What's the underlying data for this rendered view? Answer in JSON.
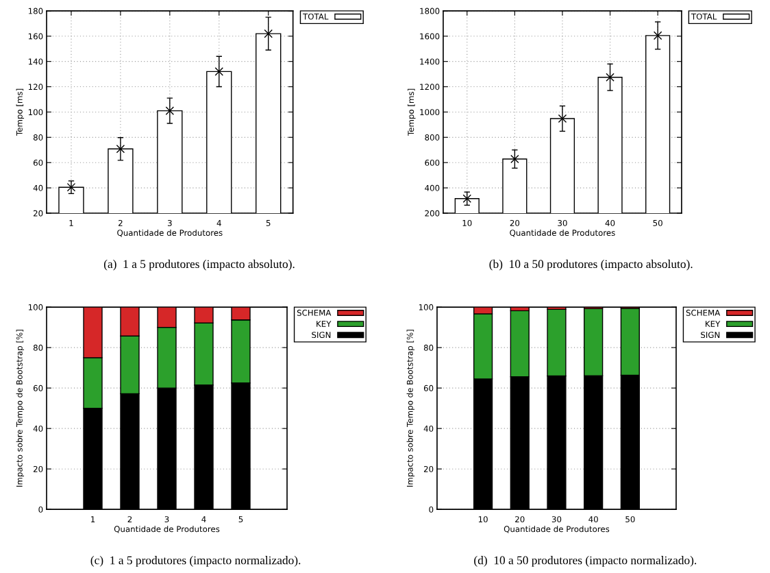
{
  "chart_data": [
    {
      "type": "bar",
      "categories": [
        "1",
        "2",
        "3",
        "4",
        "5"
      ],
      "xlabel": "Quantidade de Produtores",
      "ylabel": "Tempo [ms]",
      "ylim": [
        20,
        180
      ],
      "yticks": [
        20,
        40,
        60,
        80,
        100,
        120,
        140,
        160,
        180
      ],
      "grid": true,
      "legend": "top right",
      "marker": "cross",
      "series": [
        {
          "name": "TOTAL",
          "color": "#ffffff",
          "values": [
            40.5,
            70.8,
            101,
            132,
            162
          ]
        },
        {
          "type": "scatter",
          "color": "#000000",
          "x": [
            "1",
            "2",
            "3",
            "4",
            "5"
          ],
          "values": [
            40.5,
            70.8,
            101,
            132,
            162
          ],
          "errors": [
            5,
            9,
            10,
            12,
            13
          ]
        }
      ],
      "annotations": [
        "(a)  1 a 5 produtores (impacto absoluto)."
      ]
    },
    {
      "type": "bar",
      "categories": [
        "10",
        "20",
        "30",
        "40",
        "50"
      ],
      "xlabel": "Quantidade de Produtores",
      "ylabel": "Tempo [ms]",
      "ylim": [
        200,
        1800
      ],
      "yticks": [
        200,
        400,
        600,
        800,
        1000,
        1200,
        1400,
        1600,
        1800
      ],
      "grid": true,
      "legend": "top right",
      "marker": "cross",
      "series": [
        {
          "name": "TOTAL",
          "color": "#ffffff",
          "values": [
            315,
            628,
            948,
            1275,
            1605
          ]
        },
        {
          "type": "scatter",
          "color": "#000000",
          "x": [
            "10",
            "20",
            "30",
            "40",
            "50"
          ],
          "values": [
            315,
            628,
            948,
            1275,
            1605
          ],
          "errors": [
            52,
            72,
            100,
            105,
            108
          ]
        }
      ],
      "annotations": [
        "(b)  10 a 50 produtores (impacto absoluto)."
      ]
    },
    {
      "type": "bar",
      "stacked": true,
      "categories": [
        "1",
        "2",
        "3",
        "4",
        "5"
      ],
      "xlabel": "Quantidade de Produtores",
      "ylabel": "Impacto sobre Tempo de Bootstrap [%]",
      "ylim": [
        0,
        100
      ],
      "yticks": [
        0,
        20,
        40,
        60,
        80,
        100
      ],
      "grid": "y",
      "legend": "top right",
      "series": [
        {
          "name": "SIGN",
          "color": "#000000",
          "values": [
            50,
            57.2,
            60,
            61.5,
            62.5
          ]
        },
        {
          "name": "KEY",
          "color": "#2ca02c",
          "values": [
            25,
            28.5,
            30,
            30.7,
            31.2
          ]
        },
        {
          "name": "SCHEMA",
          "color": "#d62728",
          "values": [
            25,
            14.3,
            10,
            7.8,
            6.3
          ]
        }
      ],
      "annotations": [
        "(c)  1 a 5 produtores (impacto normalizado)."
      ]
    },
    {
      "type": "bar",
      "stacked": true,
      "categories": [
        "10",
        "20",
        "30",
        "40",
        "50"
      ],
      "xlabel": "Quantidade de Produtores",
      "ylabel": "Impacto sobre Tempo de Bootstrap [%]",
      "ylim": [
        0,
        100
      ],
      "yticks": [
        0,
        20,
        40,
        60,
        80,
        100
      ],
      "grid": "y",
      "legend": "top right",
      "series": [
        {
          "name": "SIGN",
          "color": "#000000",
          "values": [
            64.5,
            65.6,
            66,
            66.1,
            66.3
          ]
        },
        {
          "name": "KEY",
          "color": "#2ca02c",
          "values": [
            32.2,
            32.6,
            32.9,
            33.2,
            33.1
          ]
        },
        {
          "name": "SCHEMA",
          "color": "#d62728",
          "values": [
            3.3,
            1.8,
            1.1,
            0.7,
            0.6
          ]
        }
      ],
      "annotations": [
        "(d)  10 a 50 produtores (impacto normalizado)."
      ]
    }
  ]
}
